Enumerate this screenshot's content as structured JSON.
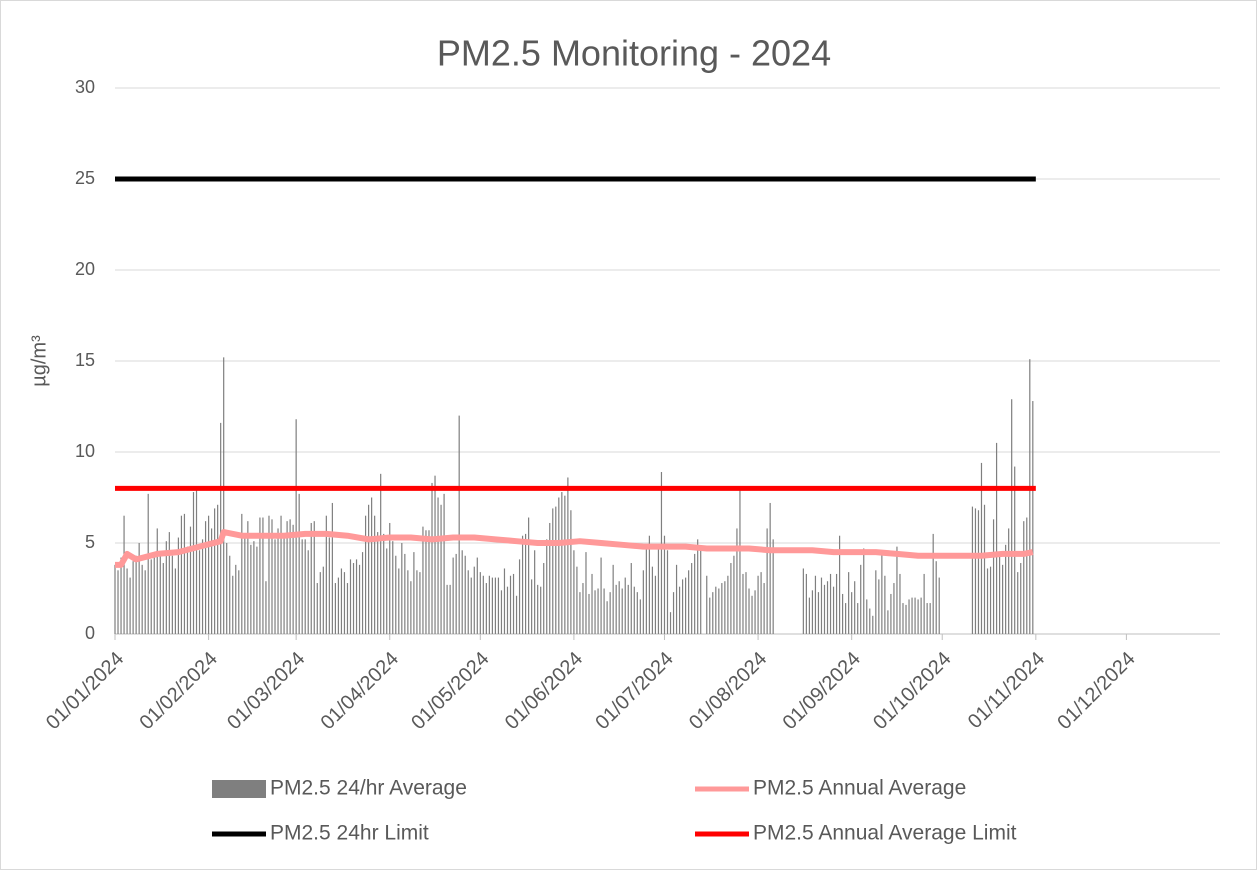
{
  "chart_data": {
    "type": "combo",
    "title": "PM2.5 Monitoring - 2024",
    "y_label": "µg/m³",
    "xlim": [
      "01/01/2024",
      "01/01/2025"
    ],
    "xticks": [
      "01/01/2024",
      "01/02/2024",
      "01/03/2024",
      "01/04/2024",
      "01/05/2024",
      "01/06/2024",
      "01/07/2024",
      "01/08/2024",
      "01/09/2024",
      "01/10/2024",
      "01/11/2024",
      "01/12/2024"
    ],
    "ylim": [
      0,
      30
    ],
    "yticks": [
      0,
      5,
      10,
      15,
      20,
      25,
      30
    ],
    "grid": true,
    "legend": "bottom",
    "series": [
      {
        "name": "PM2.5 24/hr Average",
        "type": "bar",
        "color": "#7f7f7f",
        "x": [
          "01/01/2024",
          "02/01/2024",
          "03/01/2024",
          "04/01/2024",
          "05/01/2024",
          "06/01/2024",
          "07/01/2024",
          "08/01/2024",
          "09/01/2024",
          "10/01/2024",
          "11/01/2024",
          "12/01/2024",
          "13/01/2024",
          "14/01/2024",
          "15/01/2024",
          "16/01/2024",
          "17/01/2024",
          "18/01/2024",
          "19/01/2024",
          "20/01/2024",
          "21/01/2024",
          "22/01/2024",
          "23/01/2024",
          "24/01/2024",
          "25/01/2024",
          "26/01/2024",
          "27/01/2024",
          "28/01/2024",
          "29/01/2024",
          "30/01/2024",
          "31/01/2024",
          "01/02/2024",
          "02/02/2024",
          "03/02/2024",
          "04/02/2024",
          "05/02/2024",
          "06/02/2024",
          "07/02/2024",
          "08/02/2024",
          "09/02/2024",
          "10/02/2024",
          "11/02/2024",
          "12/02/2024",
          "13/02/2024",
          "14/02/2024",
          "15/02/2024",
          "16/02/2024",
          "17/02/2024",
          "18/02/2024",
          "19/02/2024",
          "20/02/2024",
          "21/02/2024",
          "22/02/2024",
          "23/02/2024",
          "24/02/2024",
          "25/02/2024",
          "26/02/2024",
          "27/02/2024",
          "28/02/2024",
          "29/02/2024",
          "01/03/2024",
          "02/03/2024",
          "03/03/2024",
          "04/03/2024",
          "05/03/2024",
          "06/03/2024",
          "07/03/2024",
          "08/03/2024",
          "09/03/2024",
          "10/03/2024",
          "11/03/2024",
          "12/03/2024",
          "13/03/2024",
          "14/03/2024",
          "15/03/2024",
          "16/03/2024",
          "17/03/2024",
          "18/03/2024",
          "19/03/2024",
          "20/03/2024",
          "21/03/2024",
          "22/03/2024",
          "23/03/2024",
          "24/03/2024",
          "25/03/2024",
          "26/03/2024",
          "27/03/2024",
          "28/03/2024",
          "29/03/2024",
          "30/03/2024",
          "31/03/2024",
          "01/04/2024",
          "02/04/2024",
          "03/04/2024",
          "04/04/2024",
          "05/04/2024",
          "06/04/2024",
          "07/04/2024",
          "08/04/2024",
          "09/04/2024",
          "10/04/2024",
          "11/04/2024",
          "12/04/2024",
          "13/04/2024",
          "14/04/2024",
          "15/04/2024",
          "16/04/2024",
          "17/04/2024",
          "18/04/2024",
          "19/04/2024",
          "20/04/2024",
          "21/04/2024",
          "22/04/2024",
          "23/04/2024",
          "24/04/2024",
          "25/04/2024",
          "26/04/2024",
          "27/04/2024",
          "28/04/2024",
          "29/04/2024",
          "30/04/2024",
          "01/05/2024",
          "02/05/2024",
          "03/05/2024",
          "04/05/2024",
          "05/05/2024",
          "06/05/2024",
          "07/05/2024",
          "08/05/2024",
          "09/05/2024",
          "10/05/2024",
          "11/05/2024",
          "12/05/2024",
          "13/05/2024",
          "14/05/2024",
          "15/05/2024",
          "16/05/2024",
          "17/05/2024",
          "18/05/2024",
          "19/05/2024",
          "20/05/2024",
          "21/05/2024",
          "22/05/2024",
          "23/05/2024",
          "24/05/2024",
          "25/05/2024",
          "26/05/2024",
          "27/05/2024",
          "28/05/2024",
          "29/05/2024",
          "30/05/2024",
          "31/05/2024",
          "01/06/2024",
          "02/06/2024",
          "03/06/2024",
          "04/06/2024",
          "05/06/2024",
          "06/06/2024",
          "07/06/2024",
          "08/06/2024",
          "09/06/2024",
          "10/06/2024",
          "11/06/2024",
          "12/06/2024",
          "13/06/2024",
          "14/06/2024",
          "15/06/2024",
          "16/06/2024",
          "17/06/2024",
          "18/06/2024",
          "19/06/2024",
          "20/06/2024",
          "21/06/2024",
          "22/06/2024",
          "23/06/2024",
          "24/06/2024",
          "25/06/2024",
          "26/06/2024",
          "27/06/2024",
          "28/06/2024",
          "29/06/2024",
          "30/06/2024",
          "01/07/2024",
          "02/07/2024",
          "03/07/2024",
          "04/07/2024",
          "05/07/2024",
          "06/07/2024",
          "07/07/2024",
          "08/07/2024",
          "09/07/2024",
          "10/07/2024",
          "11/07/2024",
          "12/07/2024",
          "13/07/2024",
          "14/07/2024",
          "15/07/2024",
          "16/07/2024",
          "17/07/2024",
          "18/07/2024",
          "19/07/2024",
          "20/07/2024",
          "21/07/2024",
          "22/07/2024",
          "23/07/2024",
          "24/07/2024",
          "25/07/2024",
          "26/07/2024",
          "27/07/2024",
          "28/07/2024",
          "29/07/2024",
          "30/07/2024",
          "31/07/2024",
          "01/08/2024",
          "02/08/2024",
          "03/08/2024",
          "04/08/2024",
          "05/08/2024",
          "06/08/2024",
          "07/08/2024",
          "08/08/2024",
          "09/08/2024",
          "10/08/2024",
          "11/08/2024",
          "12/08/2024",
          "13/08/2024",
          "14/08/2024",
          "15/08/2024",
          "16/08/2024",
          "17/08/2024",
          "18/08/2024",
          "19/08/2024",
          "20/08/2024",
          "21/08/2024",
          "22/08/2024",
          "23/08/2024",
          "24/08/2024",
          "25/08/2024",
          "26/08/2024",
          "27/08/2024",
          "28/08/2024",
          "29/08/2024",
          "30/08/2024",
          "31/08/2024",
          "01/09/2024",
          "02/09/2024",
          "03/09/2024",
          "04/09/2024",
          "05/09/2024",
          "06/09/2024",
          "07/09/2024",
          "08/09/2024",
          "09/09/2024",
          "10/09/2024",
          "11/09/2024",
          "12/09/2024",
          "13/09/2024",
          "14/09/2024",
          "15/09/2024",
          "16/09/2024",
          "17/09/2024",
          "18/09/2024",
          "19/09/2024",
          "20/09/2024",
          "21/09/2024",
          "22/09/2024",
          "23/09/2024",
          "24/09/2024",
          "25/09/2024",
          "26/09/2024",
          "27/09/2024",
          "28/09/2024",
          "29/09/2024",
          "30/09/2024",
          "01/10/2024",
          "02/10/2024",
          "03/10/2024",
          "04/10/2024",
          "05/10/2024",
          "06/10/2024",
          "07/10/2024",
          "08/10/2024",
          "09/10/2024",
          "10/10/2024",
          "11/10/2024",
          "12/10/2024",
          "13/10/2024",
          "14/10/2024",
          "15/10/2024",
          "16/10/2024",
          "17/10/2024",
          "18/10/2024",
          "19/10/2024",
          "20/10/2024",
          "21/10/2024",
          "22/10/2024",
          "23/10/2024",
          "24/10/2024",
          "25/10/2024",
          "26/10/2024",
          "27/10/2024",
          "28/10/2024",
          "29/10/2024",
          "30/10/2024",
          "31/10/2024"
        ],
        "values": [
          3.8,
          3.5,
          4.2,
          6.5,
          3.6,
          3.1,
          4.0,
          4.3,
          5.0,
          3.8,
          3.5,
          7.7,
          4.1,
          4.5,
          5.8,
          4.4,
          3.9,
          5.1,
          5.6,
          4.3,
          3.6,
          5.3,
          6.5,
          6.6,
          4.8,
          5.9,
          7.8,
          7.9,
          4.6,
          5.2,
          6.2,
          6.5,
          5.8,
          6.9,
          7.1,
          11.6,
          15.2,
          5.0,
          4.3,
          3.2,
          3.8,
          3.5,
          6.6,
          5.5,
          6.2,
          4.9,
          5.1,
          4.8,
          6.4,
          6.4,
          2.9,
          6.5,
          6.3,
          5.2,
          5.8,
          6.5,
          5.5,
          6.2,
          6.3,
          6.0,
          11.8,
          7.7,
          5.2,
          5.2,
          4.6,
          6.1,
          6.2,
          2.8,
          3.4,
          3.7,
          6.5,
          5.3,
          7.2,
          2.8,
          3.1,
          3.6,
          3.4,
          2.8,
          4.1,
          3.9,
          4.1,
          3.8,
          4.5,
          6.5,
          7.1,
          7.5,
          6.5,
          5.6,
          8.8,
          5.5,
          4.7,
          6.1,
          5.1,
          4.3,
          3.6,
          5.0,
          4.4,
          3.5,
          2.9,
          4.5,
          3.5,
          3.4,
          5.9,
          5.7,
          5.7,
          8.3,
          8.7,
          7.5,
          7.1,
          7.7,
          2.7,
          2.7,
          4.2,
          4.4,
          12.0,
          4.6,
          4.3,
          3.5,
          3.1,
          3.7,
          4.2,
          3.4,
          3.2,
          2.8,
          3.2,
          3.1,
          3.1,
          3.1,
          2.4,
          3.6,
          2.6,
          3.2,
          3.3,
          2.1,
          4.1,
          5.4,
          5.5,
          6.4,
          3.0,
          4.6,
          2.7,
          2.6,
          3.9,
          5.2,
          6.1,
          6.9,
          7.0,
          7.5,
          7.8,
          7.6,
          8.6,
          6.8,
          4.6,
          3.7,
          2.3,
          2.8,
          4.5,
          2.2,
          3.3,
          2.4,
          2.5,
          4.2,
          2.5,
          1.8,
          2.3,
          3.8,
          2.7,
          2.9,
          2.5,
          3.1,
          2.7,
          3.9,
          2.6,
          2.3,
          1.9,
          3.5,
          4.7,
          5.4,
          3.7,
          3.2,
          4.9,
          8.9,
          5.4,
          4.6,
          1.2,
          2.3,
          3.8,
          2.6,
          3.0,
          3.1,
          3.5,
          3.9,
          4.4,
          5.2,
          4.8,
          null,
          3.2,
          2.0,
          2.3,
          2.6,
          2.5,
          2.8,
          2.9,
          3.2,
          3.9,
          4.3,
          5.8,
          7.9,
          3.3,
          3.4,
          2.5,
          2.1,
          2.4,
          3.2,
          3.4,
          2.8,
          5.8,
          7.2,
          5.2,
          null,
          null,
          null,
          null,
          null,
          null,
          null,
          null,
          null,
          3.6,
          3.3,
          2.0,
          2.4,
          3.2,
          2.3,
          3.1,
          2.7,
          2.9,
          3.3,
          2.6,
          3.3,
          5.4,
          2.2,
          1.7,
          3.4,
          2.3,
          2.9,
          1.7,
          3.8,
          4.7,
          1.9,
          1.4,
          1.0,
          3.5,
          3.0,
          4.6,
          3.2,
          1.3,
          2.2,
          2.8,
          4.8,
          3.3,
          1.7,
          1.6,
          1.9,
          2.0,
          2.0,
          1.9,
          2.0,
          3.3,
          1.7,
          1.7,
          5.5,
          4.0,
          3.1,
          null,
          null,
          null,
          null,
          null,
          null,
          null,
          null,
          null,
          null,
          7.0,
          6.9,
          6.8,
          9.4,
          7.1,
          3.6,
          3.7,
          6.3,
          10.5,
          4.3,
          3.8,
          4.9,
          5.8,
          12.9,
          9.2,
          3.4,
          3.9,
          6.2,
          6.4,
          15.1,
          12.8
        ]
      },
      {
        "name": "PM2.5 Annual Average",
        "type": "line",
        "color": "#ff9999",
        "x": [
          "01/01/2024",
          "03/01/2024",
          "05/01/2024",
          "08/01/2024",
          "15/01/2024",
          "22/01/2024",
          "29/01/2024",
          "05/02/2024",
          "06/02/2024",
          "12/02/2024",
          "19/02/2024",
          "26/02/2024",
          "04/03/2024",
          "11/03/2024",
          "18/03/2024",
          "25/03/2024",
          "01/04/2024",
          "08/04/2024",
          "15/04/2024",
          "22/04/2024",
          "29/04/2024",
          "06/05/2024",
          "13/05/2024",
          "20/05/2024",
          "27/05/2024",
          "03/06/2024",
          "10/06/2024",
          "17/06/2024",
          "24/06/2024",
          "01/07/2024",
          "08/07/2024",
          "15/07/2024",
          "22/07/2024",
          "29/07/2024",
          "05/08/2024",
          "12/08/2024",
          "19/08/2024",
          "26/08/2024",
          "02/09/2024",
          "09/09/2024",
          "16/09/2024",
          "23/09/2024",
          "30/09/2024",
          "07/10/2024",
          "14/10/2024",
          "21/10/2024",
          "28/10/2024",
          "31/10/2024"
        ],
        "values": [
          3.8,
          3.8,
          4.4,
          4.1,
          4.4,
          4.5,
          4.8,
          5.1,
          5.6,
          5.4,
          5.4,
          5.4,
          5.5,
          5.5,
          5.4,
          5.2,
          5.3,
          5.3,
          5.2,
          5.3,
          5.3,
          5.2,
          5.1,
          5.0,
          5.0,
          5.1,
          5.0,
          4.9,
          4.8,
          4.8,
          4.8,
          4.7,
          4.7,
          4.7,
          4.6,
          4.6,
          4.6,
          4.5,
          4.5,
          4.5,
          4.4,
          4.3,
          4.3,
          4.3,
          4.3,
          4.4,
          4.4,
          4.5
        ]
      },
      {
        "name": "PM2.5 24hr Limit",
        "type": "line",
        "color": "#000000",
        "x": [
          "01/01/2024",
          "01/11/2024"
        ],
        "values": [
          25,
          25
        ]
      },
      {
        "name": "PM2.5 Annual Average Limit",
        "type": "line",
        "color": "#ff0000",
        "x": [
          "01/01/2024",
          "01/11/2024"
        ],
        "values": [
          8,
          8
        ]
      }
    ]
  }
}
